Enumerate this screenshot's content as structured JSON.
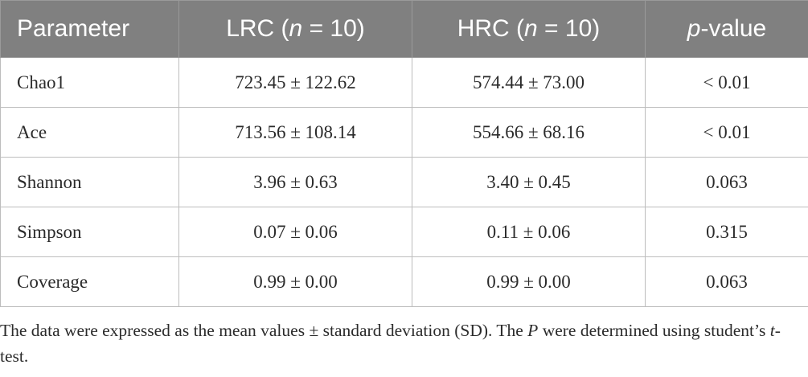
{
  "table": {
    "headers": [
      {
        "pre": "",
        "it": "",
        "post": "Parameter"
      },
      {
        "pre": "LRC (",
        "it": "n",
        "post": " = 10)"
      },
      {
        "pre": "HRC (",
        "it": "n",
        "post": " = 10)"
      },
      {
        "pre": "",
        "it": "p",
        "post": "-value"
      }
    ],
    "rows": [
      [
        "Chao1",
        "723.45 ± 122.62",
        "574.44 ± 73.00",
        "< 0.01"
      ],
      [
        "Ace",
        "713.56 ± 108.14",
        "554.66 ± 68.16",
        "< 0.01"
      ],
      [
        "Shannon",
        "3.96 ± 0.63",
        "3.40 ± 0.45",
        "0.063"
      ],
      [
        "Simpson",
        "0.07 ± 0.06",
        "0.11 ± 0.06",
        "0.315"
      ],
      [
        "Coverage",
        "0.99 ± 0.00",
        "0.99 ± 0.00",
        "0.063"
      ]
    ]
  },
  "footnote": {
    "part1": "The data were expressed as the mean values ± standard deviation (SD). The ",
    "italic1": "P",
    "part2": " were determined using student’s ",
    "italic2": "t",
    "part3": "-test."
  }
}
